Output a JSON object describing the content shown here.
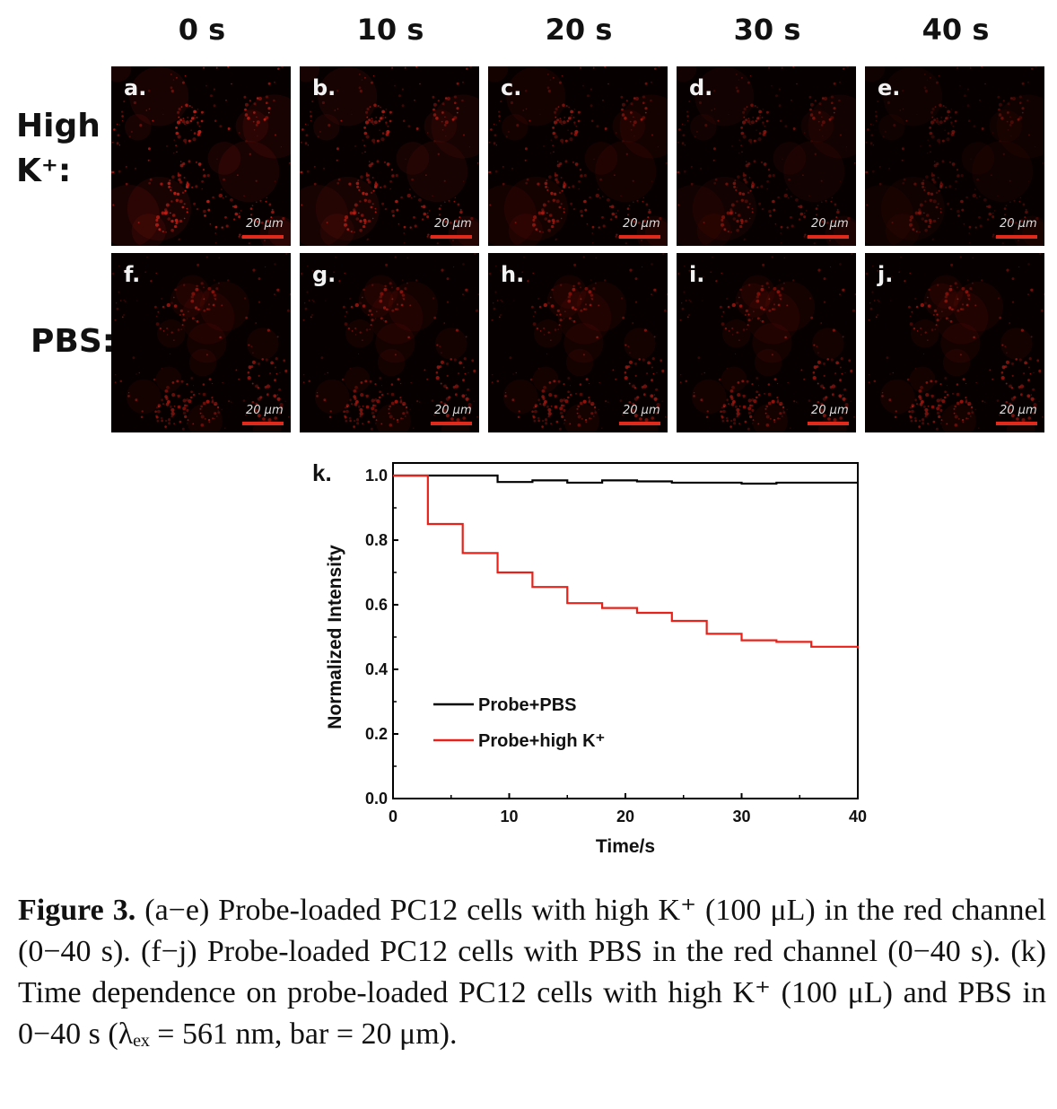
{
  "time_labels": [
    "0 s",
    "10 s",
    "20 s",
    "30 s",
    "40 s"
  ],
  "row_labels": {
    "high_k": "High K⁺:",
    "pbs": "PBS:"
  },
  "row1_panels": [
    "a.",
    "b.",
    "c.",
    "d.",
    "e."
  ],
  "row2_panels": [
    "f.",
    "g.",
    "h.",
    "i.",
    "j."
  ],
  "scale_bar_text": "20 μm",
  "colors": {
    "fluorescence": "#c81e14",
    "probe_pbs": "#000000",
    "probe_highk": "#e8221a"
  },
  "chart_data": {
    "panel_label": "k.",
    "type": "line",
    "step": true,
    "xlabel": "Time/s",
    "ylabel": "Normalized Intensity",
    "xlim": [
      0,
      40
    ],
    "ylim": [
      0,
      1.0
    ],
    "xticks": [
      0,
      10,
      20,
      30,
      40
    ],
    "yticks": [
      0.0,
      0.2,
      0.4,
      0.6,
      0.8,
      1.0
    ],
    "ytick_labels": [
      "0.0",
      "0.2",
      "0.4",
      "0.6",
      "0.8",
      "1.0"
    ],
    "legend_position": "lower-left",
    "series": [
      {
        "name": "Probe+PBS",
        "color": "#000000",
        "x": [
          0,
          3,
          6,
          9,
          12,
          15,
          18,
          21,
          24,
          27,
          30,
          33,
          36,
          40
        ],
        "y": [
          1.0,
          1.0,
          1.0,
          0.98,
          0.985,
          0.978,
          0.985,
          0.982,
          0.978,
          0.978,
          0.975,
          0.978,
          0.978,
          0.978
        ]
      },
      {
        "name": "Probe+high K⁺",
        "color": "#e8221a",
        "x": [
          0,
          3,
          6,
          9,
          12,
          15,
          18,
          21,
          24,
          27,
          30,
          33,
          36,
          40
        ],
        "y": [
          1.0,
          0.85,
          0.76,
          0.7,
          0.655,
          0.605,
          0.59,
          0.575,
          0.55,
          0.51,
          0.49,
          0.485,
          0.47,
          0.465
        ]
      }
    ]
  },
  "caption": {
    "label": "Figure 3.",
    "text": " (a−e) Probe-loaded PC12 cells with high K⁺ (100 μL) in the red channel (0−40 s). (f−j) Probe-loaded PC12 cells with PBS in the red channel (0−40 s). (k) Time dependence on probe-loaded PC12 cells with high K⁺ (100 μL) and PBS in 0−40 s (λₑₓ = 561 nm, bar = 20 μm)."
  }
}
